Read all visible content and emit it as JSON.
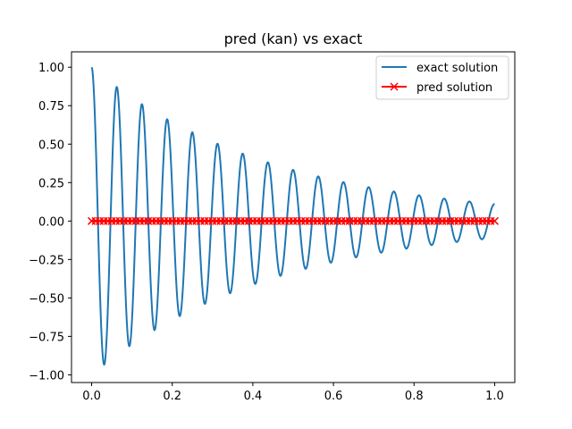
{
  "chart_data": {
    "type": "line",
    "title": "pred (kan) vs exact",
    "xlabel": "",
    "ylabel": "",
    "xlim": [
      -0.05,
      1.05
    ],
    "ylim": [
      -1.05,
      1.1
    ],
    "xticks": [
      0.0,
      0.2,
      0.4,
      0.6,
      0.8,
      1.0
    ],
    "xtick_labels": [
      "0.0",
      "0.2",
      "0.4",
      "0.6",
      "0.8",
      "1.0"
    ],
    "yticks": [
      -1.0,
      -0.75,
      -0.5,
      -0.25,
      0.0,
      0.25,
      0.5,
      0.75,
      1.0
    ],
    "ytick_labels": [
      "−1.00",
      "−0.75",
      "−0.50",
      "−0.25",
      "0.00",
      "0.25",
      "0.50",
      "0.75",
      "1.00"
    ],
    "grid": false,
    "legend_position": "top-right",
    "series": [
      {
        "name": "exact solution",
        "color": "#1f77b4",
        "marker": "none",
        "function": "damped-cosine",
        "amplitude": 1.0,
        "decay": 2.2,
        "frequency": 16,
        "x_start": 0.0,
        "x_end": 1.0,
        "peaks": [
          {
            "x": 0.0,
            "y": 1.0
          },
          {
            "x": 0.06,
            "y": 0.88
          },
          {
            "x": 0.125,
            "y": 0.78
          },
          {
            "x": 0.19,
            "y": 0.69
          },
          {
            "x": 0.25,
            "y": 0.61
          },
          {
            "x": 0.315,
            "y": 0.54
          },
          {
            "x": 0.375,
            "y": 0.47
          },
          {
            "x": 0.44,
            "y": 0.41
          },
          {
            "x": 0.5,
            "y": 0.37
          },
          {
            "x": 0.565,
            "y": 0.32
          },
          {
            "x": 0.625,
            "y": 0.29
          },
          {
            "x": 0.69,
            "y": 0.25
          },
          {
            "x": 0.75,
            "y": 0.22
          },
          {
            "x": 0.815,
            "y": 0.2
          },
          {
            "x": 0.875,
            "y": 0.17
          },
          {
            "x": 0.94,
            "y": 0.15
          }
        ],
        "troughs": [
          {
            "x": 0.03,
            "y": -0.94
          },
          {
            "x": 0.095,
            "y": -0.83
          },
          {
            "x": 0.155,
            "y": -0.73
          },
          {
            "x": 0.22,
            "y": -0.64
          },
          {
            "x": 0.28,
            "y": -0.57
          },
          {
            "x": 0.345,
            "y": -0.5
          },
          {
            "x": 0.41,
            "y": -0.44
          },
          {
            "x": 0.47,
            "y": -0.39
          },
          {
            "x": 0.53,
            "y": -0.34
          },
          {
            "x": 0.595,
            "y": -0.3
          },
          {
            "x": 0.66,
            "y": -0.27
          },
          {
            "x": 0.72,
            "y": -0.24
          },
          {
            "x": 0.785,
            "y": -0.21
          },
          {
            "x": 0.845,
            "y": -0.18
          },
          {
            "x": 0.91,
            "y": -0.16
          },
          {
            "x": 0.97,
            "y": -0.14
          }
        ],
        "end_point": {
          "x": 1.0,
          "y": 0.12
        }
      },
      {
        "name": "pred solution",
        "color": "#ff0000",
        "marker": "x",
        "x_start": 0.0,
        "x_end": 1.0,
        "points": 101,
        "y": 0.0
      }
    ]
  }
}
